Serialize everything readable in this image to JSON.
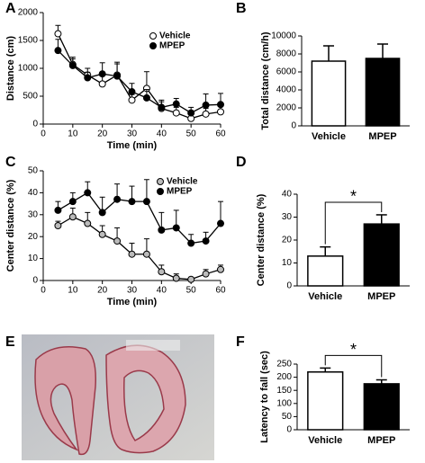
{
  "chart_data": [
    {
      "type": "line",
      "panel": "A",
      "xlabel": "Time (min)",
      "ylabel": "Distance (cm)",
      "x": [
        5,
        10,
        15,
        20,
        25,
        30,
        35,
        40,
        45,
        50,
        55,
        60
      ],
      "xlim": [
        0,
        60
      ],
      "xticks": [
        0,
        10,
        20,
        30,
        40,
        50,
        60
      ],
      "ylim": [
        0,
        2000
      ],
      "yticks": [
        0,
        500,
        1000,
        1500,
        2000
      ],
      "series": [
        {
          "name": "Vehicle",
          "color": "#ffffff",
          "values": [
            1620,
            1070,
            880,
            720,
            880,
            430,
            640,
            280,
            200,
            100,
            180,
            220
          ],
          "errors": [
            150,
            100,
            120,
            150,
            200,
            100,
            300,
            150,
            100,
            100,
            100,
            100
          ]
        },
        {
          "name": "MPEP",
          "color": "#000000",
          "values": [
            1320,
            1050,
            830,
            900,
            860,
            580,
            470,
            300,
            360,
            200,
            340,
            350
          ],
          "errors": [
            200,
            150,
            100,
            200,
            250,
            150,
            150,
            100,
            100,
            100,
            200,
            200
          ]
        }
      ]
    },
    {
      "type": "bar",
      "panel": "B",
      "ylabel": "Total distance (cm/h)",
      "categories": [
        "Vehicle",
        "MPEP"
      ],
      "values": [
        7200,
        7500
      ],
      "errors": [
        1700,
        1600
      ],
      "colors": [
        "#ffffff",
        "#000000"
      ],
      "ylim": [
        0,
        10000
      ],
      "yticks": [
        0,
        2000,
        4000,
        6000,
        8000,
        10000
      ]
    },
    {
      "type": "line",
      "panel": "C",
      "xlabel": "Time (min)",
      "ylabel": "Center distance (%)",
      "x": [
        5,
        10,
        15,
        20,
        25,
        30,
        35,
        40,
        45,
        50,
        55,
        60
      ],
      "xlim": [
        0,
        60
      ],
      "xticks": [
        0,
        10,
        20,
        30,
        40,
        50,
        60
      ],
      "ylim": [
        0,
        50
      ],
      "yticks": [
        0,
        10,
        20,
        30,
        40,
        50
      ],
      "series": [
        {
          "name": "Vehicle",
          "color": "#bbbbbb",
          "values": [
            25,
            29,
            26,
            21,
            18,
            12,
            12,
            4,
            1,
            0.5,
            3,
            5
          ],
          "errors": [
            2,
            4,
            5,
            4,
            6,
            5,
            7,
            3,
            2,
            1,
            2,
            2
          ]
        },
        {
          "name": "MPEP",
          "color": "#000000",
          "values": [
            32,
            36,
            40,
            31,
            37,
            36,
            36,
            23,
            24,
            17,
            18,
            26
          ],
          "errors": [
            4,
            4,
            5,
            7,
            7,
            7,
            10,
            8,
            8,
            4,
            4,
            10
          ]
        }
      ]
    },
    {
      "type": "bar",
      "panel": "D",
      "ylabel": "Center distance (%)",
      "categories": [
        "Vehicle",
        "MPEP"
      ],
      "values": [
        13,
        27
      ],
      "errors": [
        4,
        4
      ],
      "colors": [
        "#ffffff",
        "#000000"
      ],
      "ylim": [
        0,
        40
      ],
      "yticks": [
        0,
        10,
        20,
        30,
        40
      ],
      "annotation": "*"
    },
    {
      "type": "bar",
      "panel": "F",
      "ylabel": "Latency to fall (sec)",
      "categories": [
        "Vehicle",
        "MPEP"
      ],
      "values": [
        220,
        175
      ],
      "errors": [
        15,
        15
      ],
      "colors": [
        "#ffffff",
        "#000000"
      ],
      "ylim": [
        0,
        250
      ],
      "yticks": [
        0,
        50,
        100,
        150,
        200,
        250
      ],
      "annotation": "*"
    }
  ],
  "image_panel": {
    "label": "E"
  }
}
